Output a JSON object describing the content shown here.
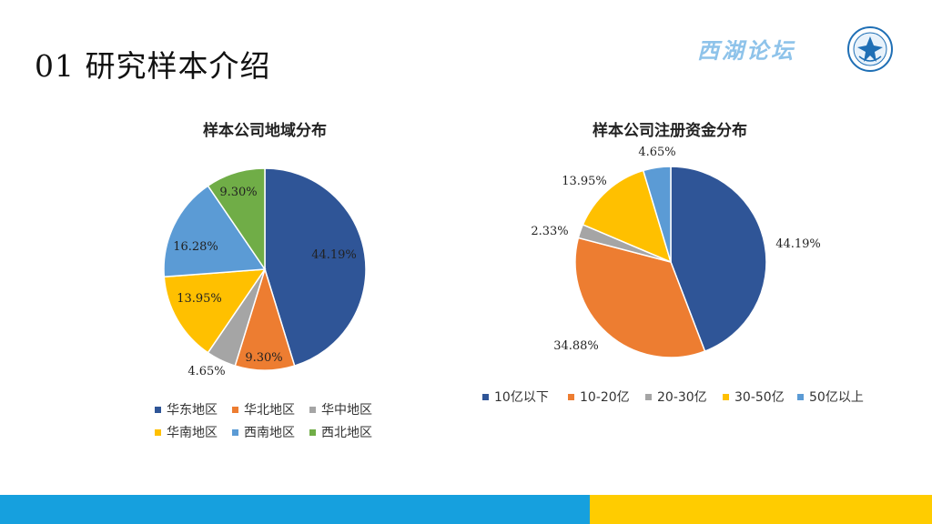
{
  "slide": {
    "title": "01 研究样本介绍"
  },
  "brand": {
    "text": "西湖论坛",
    "logo_icon": "forum-emblem-icon"
  },
  "colors": {
    "blue_dark": "#2f5597",
    "orange": "#ed7d31",
    "gray": "#a5a5a5",
    "yellow": "#ffc000",
    "blue_light": "#5b9bd5",
    "green": "#70ad47",
    "footer_blue": "#16a0de",
    "footer_yellow": "#ffcc00"
  },
  "chart_data": [
    {
      "type": "pie",
      "title": "样本公司地域分布",
      "categories": [
        "华东地区",
        "华北地区",
        "华中地区",
        "华南地区",
        "西南地区",
        "西北地区"
      ],
      "values": [
        44.19,
        9.3,
        4.65,
        13.95,
        16.28,
        9.3
      ],
      "labels": [
        "44.19%",
        "9.30%",
        "4.65%",
        "13.95%",
        "16.28%",
        "9.30%"
      ],
      "colors": [
        "#2f5597",
        "#ed7d31",
        "#a5a5a5",
        "#ffc000",
        "#5b9bd5",
        "#70ad47"
      ],
      "legend_position": "bottom"
    },
    {
      "type": "pie",
      "title": "样本公司注册资金分布",
      "categories": [
        "10亿以下",
        "10-20亿",
        "20-30亿",
        "30-50亿",
        "50亿以上"
      ],
      "values": [
        44.19,
        34.88,
        2.33,
        13.95,
        4.65
      ],
      "labels": [
        "44.19%",
        "34.88%",
        "2.33%",
        "13.95%",
        "4.65%"
      ],
      "colors": [
        "#2f5597",
        "#ed7d31",
        "#a5a5a5",
        "#ffc000",
        "#5b9bd5"
      ],
      "legend_position": "bottom"
    }
  ]
}
